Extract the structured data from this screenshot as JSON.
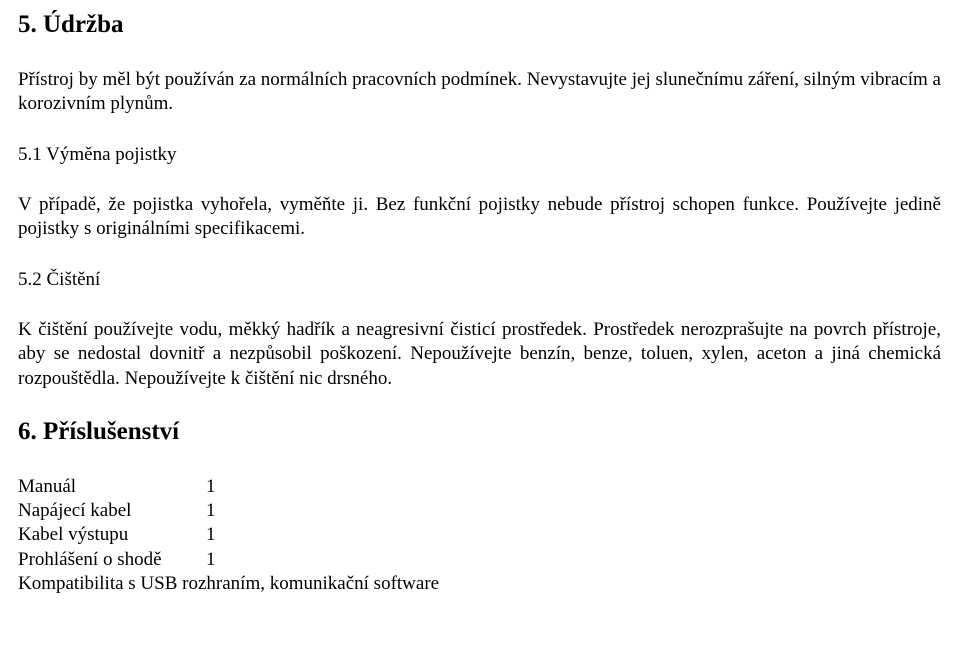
{
  "section5": {
    "heading": "5. Údržba",
    "intro": "Přístroj by měl být používán za normálních pracovních podmínek. Nevystavujte jej slunečnímu záření, silným vibracím a korozivním plynům.",
    "sub1_title": "5.1 Výměna pojistky",
    "sub1_body": "V případě, že pojistka vyhořela, vyměňte ji. Bez funkční pojistky nebude přístroj schopen funkce. Používejte jedině pojistky s originálními specifikacemi.",
    "sub2_title": "5.2 Čištění",
    "sub2_body": "K čištění používejte vodu, měkký hadřík a neagresivní čisticí prostředek. Prostředek nerozprašujte na povrch přístroje, aby se nedostal dovnitř a nezpůsobil poškození. Nepoužívejte benzín, benze, toluen, xylen, aceton a jiná chemická rozpouštědla. Nepoužívejte k čištění nic drsného."
  },
  "section6": {
    "heading": "6. Příslušenství",
    "items": [
      {
        "label": "Manuál",
        "qty": "1"
      },
      {
        "label": "Napájecí kabel",
        "qty": "1"
      },
      {
        "label": "Kabel výstupu",
        "qty": "1"
      },
      {
        "label": "Prohlášení o shodě",
        "qty": "1"
      }
    ],
    "footer": "Kompatibilita s USB rozhraním, komunikační software"
  }
}
